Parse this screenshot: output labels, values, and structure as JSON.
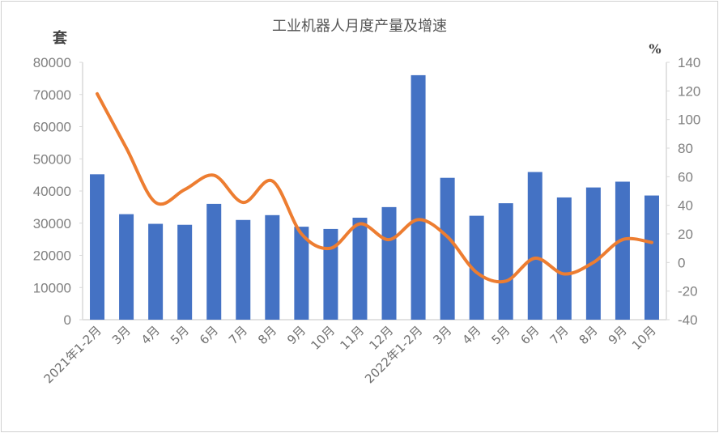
{
  "chart_data": {
    "type": "bar+line",
    "title": "工业机器人月度产量及增速",
    "categories": [
      "2021年1-2月",
      "3月",
      "4月",
      "5月",
      "6月",
      "7月",
      "8月",
      "9月",
      "10月",
      "11月",
      "12月",
      "2022年1-2月",
      "3月",
      "4月",
      "5月",
      "6月",
      "7月",
      "8月",
      "9月",
      "10月"
    ],
    "series": [
      {
        "type": "bar",
        "axis": "left",
        "color": "#4472C4",
        "values": [
          45200,
          32800,
          29800,
          29500,
          36000,
          31000,
          32500,
          28900,
          28200,
          31700,
          35000,
          76000,
          44100,
          32300,
          36200,
          45900,
          38000,
          41100,
          42900,
          38600
        ]
      },
      {
        "type": "line",
        "axis": "right",
        "color": "#ED7D31",
        "smooth": true,
        "values": [
          118,
          80,
          42,
          51,
          61,
          42,
          57,
          20,
          10,
          27,
          16,
          30,
          18,
          -7,
          -13,
          3,
          -8,
          0,
          16,
          14
        ]
      }
    ],
    "left_axis": {
      "label": "套",
      "ylim": [
        0,
        80000
      ],
      "ticks": [
        0,
        10000,
        20000,
        30000,
        40000,
        50000,
        60000,
        70000,
        80000
      ]
    },
    "right_axis": {
      "label": "%",
      "ylim": [
        -40,
        140
      ],
      "ticks": [
        -40,
        -20,
        0,
        20,
        40,
        60,
        80,
        100,
        120,
        140
      ]
    },
    "grid": false,
    "legend": "none"
  }
}
